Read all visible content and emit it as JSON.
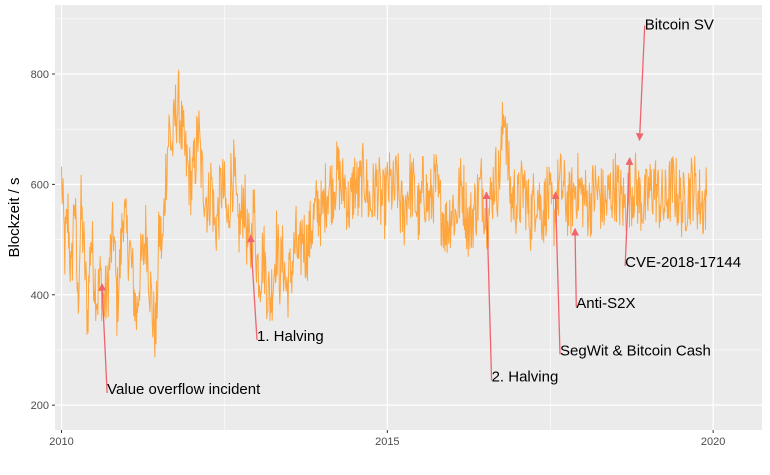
{
  "chart_data": {
    "type": "line",
    "title": "",
    "xlabel": "",
    "ylabel": "Blockzeit / s",
    "xlim": [
      2009.9,
      2020.75
    ],
    "ylim": [
      155,
      925
    ],
    "x_ticks": [
      2010,
      2015,
      2020
    ],
    "x_tick_labels": [
      "2010",
      "2015",
      "2020"
    ],
    "y_ticks": [
      200,
      400,
      600,
      800
    ],
    "y_tick_labels": [
      "200",
      "400",
      "600",
      "800"
    ],
    "grid": true,
    "background": "#EBEBEB",
    "gridline_color": "#FFFFFF",
    "line_color": "#FFA53D",
    "arrow_color": "#F0646E",
    "series": [
      {
        "x_start": 2010.0,
        "x_end": 2020.15,
        "step": 0.05,
        "values": [
          612,
          480,
          545,
          420,
          590,
          380,
          555,
          470,
          360,
          510,
          440,
          395,
          430,
          385,
          400,
          470,
          520,
          380,
          455,
          560,
          500,
          480,
          420,
          360,
          440,
          470,
          520,
          430,
          360,
          330,
          520,
          480,
          620,
          700,
          665,
          730,
          745,
          690,
          650,
          620,
          600,
          640,
          700,
          620,
          590,
          560,
          610,
          520,
          540,
          600,
          580,
          520,
          610,
          620,
          520,
          530,
          580,
          500,
          470,
          560,
          460,
          440,
          480,
          420,
          390,
          430,
          500,
          440,
          470,
          410,
          430,
          460,
          500,
          450,
          520,
          480,
          500,
          530,
          550,
          560,
          540,
          580,
          600,
          590,
          610,
          620,
          590,
          600,
          560,
          570,
          610,
          580,
          600,
          620,
          580,
          560,
          590,
          600,
          570,
          560,
          590,
          600,
          580,
          610,
          560,
          540,
          580,
          600,
          590,
          560,
          540,
          600,
          580,
          560,
          590,
          600,
          560,
          550,
          520,
          540,
          560,
          540,
          580,
          600,
          560,
          520,
          540,
          560,
          580,
          600,
          560,
          540,
          580,
          620,
          600,
          660,
          750,
          640,
          570,
          580,
          560,
          580,
          600,
          560,
          540,
          570,
          590,
          560,
          550,
          580,
          560,
          540,
          580,
          600,
          590,
          570,
          560,
          580,
          600,
          590,
          580,
          570,
          560,
          580,
          590,
          580,
          570,
          560,
          580,
          590,
          600,
          580,
          570,
          560,
          580,
          590,
          600,
          580,
          570,
          560,
          580,
          590,
          600,
          580,
          570,
          560,
          580,
          590,
          600,
          580,
          570,
          560,
          580,
          590,
          600,
          580,
          570,
          560,
          580
        ]
      }
    ],
    "annotations": [
      {
        "label": "Value overflow incident",
        "x": 2010.62,
        "y": 420,
        "label_x": 2010.7,
        "label_y": 222
      },
      {
        "label": "1. Halving",
        "x": 2012.9,
        "y": 508,
        "label_x": 2013.0,
        "label_y": 318
      },
      {
        "label": "2. Halving",
        "x": 2016.52,
        "y": 586,
        "label_x": 2016.6,
        "label_y": 245
      },
      {
        "label": "SegWit & Bitcoin Cash",
        "x": 2017.58,
        "y": 586,
        "label_x": 2017.65,
        "label_y": 292
      },
      {
        "label": "Anti-S2X",
        "x": 2017.88,
        "y": 520,
        "label_x": 2017.9,
        "label_y": 378
      },
      {
        "label": "CVE-2018-17144",
        "x": 2018.72,
        "y": 648,
        "label_x": 2018.65,
        "label_y": 452
      },
      {
        "label": "Bitcoin SV",
        "x": 2018.87,
        "y": 680,
        "label_x": 2018.95,
        "label_y": 888
      }
    ]
  }
}
